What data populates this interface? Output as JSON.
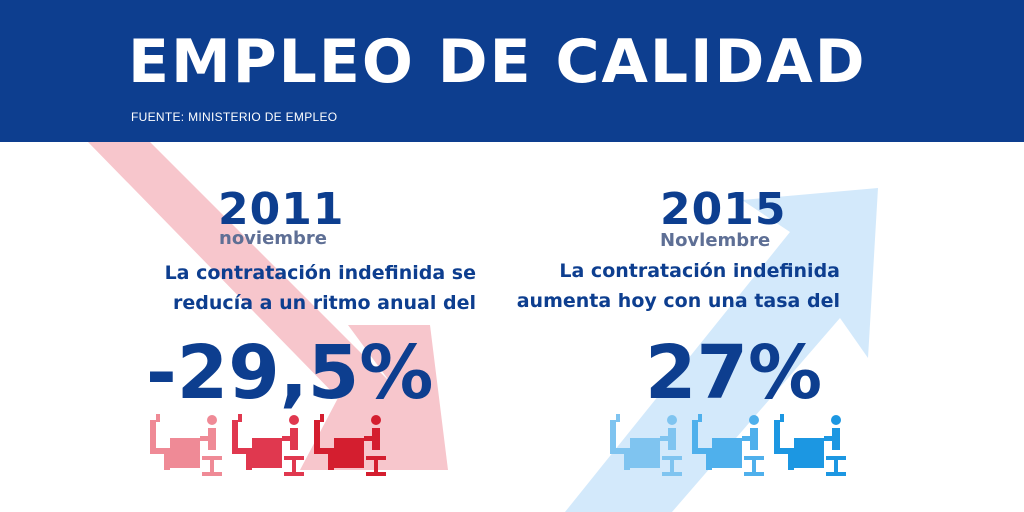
{
  "header": {
    "title": "EMPLEO DE CALIDAD",
    "source": "FUENTE: MINISTERIO DE EMPLEO",
    "background_color": "#0d3e8f"
  },
  "left_panel": {
    "year": "2011",
    "month": "noviembre",
    "description_line1": "La contratación indefinida se",
    "description_line2": "reducía a un ritmo anual del",
    "value": "-29,5%",
    "arrow_direction": "down",
    "arrow_color": "#f7c6cc",
    "icon_colors": [
      "#ef8a96",
      "#e0384f",
      "#d41e2f"
    ]
  },
  "right_panel": {
    "year": "2015",
    "month": "Novlembre",
    "description_line1": "La contratación indefinida",
    "description_line2": "aumenta hoy con una tasa del",
    "value": "27%",
    "arrow_direction": "up",
    "arrow_color": "#d3e9fb",
    "icon_colors": [
      "#7fc4f0",
      "#4fb0ec",
      "#1c97e2"
    ]
  }
}
